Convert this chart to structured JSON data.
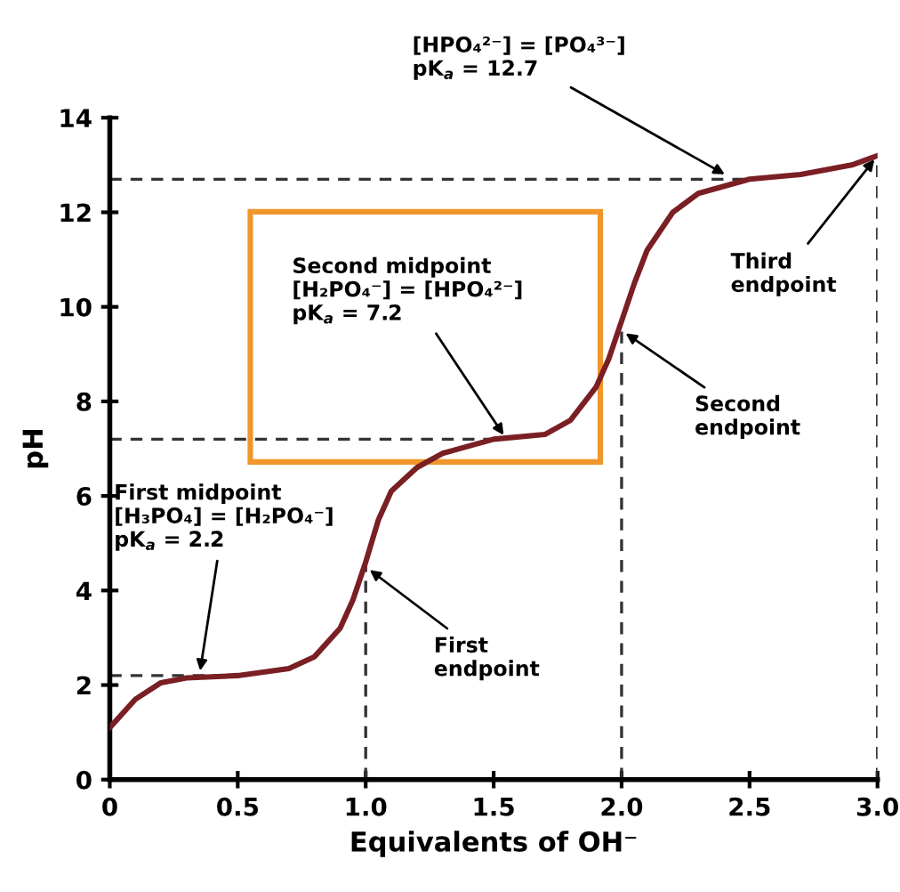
{
  "chart_data": {
    "type": "line",
    "xlabel": "Equivalents of OH⁻",
    "ylabel": "pH",
    "xlim": [
      0,
      3.0
    ],
    "ylim": [
      0,
      14
    ],
    "xticks": [
      0,
      0.5,
      {
        "value": 1.0,
        "label": "1.0"
      },
      1.5,
      {
        "value": 2.0,
        "label": "2.0"
      },
      2.5,
      {
        "value": 3.0,
        "label": "3.0"
      }
    ],
    "yticks": [
      0,
      2,
      4,
      6,
      8,
      10,
      12,
      14
    ],
    "grid": false,
    "marker": "none",
    "line_style": "solid",
    "x": [
      0,
      0.1,
      0.2,
      0.3,
      0.5,
      0.7,
      0.8,
      0.9,
      0.95,
      1.0,
      1.05,
      1.1,
      1.2,
      1.3,
      1.5,
      1.7,
      1.8,
      1.9,
      1.95,
      2.0,
      2.05,
      2.1,
      2.2,
      2.3,
      2.5,
      2.7,
      2.9,
      3.0
    ],
    "series": [
      {
        "color": "#7a1f24",
        "values": [
          1.1,
          1.7,
          2.05,
          2.15,
          2.2,
          2.35,
          2.6,
          3.2,
          3.8,
          4.6,
          5.5,
          6.1,
          6.6,
          6.9,
          7.2,
          7.3,
          7.6,
          8.3,
          8.9,
          9.7,
          10.5,
          11.2,
          12.0,
          12.4,
          12.7,
          12.8,
          13.0,
          13.2
        ]
      }
    ],
    "ref_lines": [
      {
        "axis": "y",
        "value": 2.2,
        "line_style": "dashed",
        "color": "#333333"
      },
      {
        "axis": "y",
        "value": 7.2,
        "line_style": "dashed",
        "color": "#333333"
      },
      {
        "axis": "y",
        "value": 12.7,
        "line_style": "dashed",
        "color": "#333333"
      },
      {
        "axis": "x",
        "value": 1.0,
        "line_style": "dashed",
        "color": "#333333"
      },
      {
        "axis": "x",
        "value": 2.0,
        "line_style": "dashed",
        "color": "#333333"
      },
      {
        "axis": "x",
        "value": 3.0,
        "line_style": "dashed",
        "color": "#333333"
      }
    ],
    "annotations": [
      {
        "text": "[HPO₄²⁻] = [PO₄³⁻]\npK$_{a}$ = 12.7",
        "x": 2.42,
        "y": 12.75
      },
      {
        "text": "Third\nendpoint",
        "x": 3.0,
        "y": 13.2
      },
      {
        "text": "Second\nendpoint",
        "x": 2.0,
        "y": 9.5
      },
      {
        "text": "First\nendpoint",
        "x": 1.0,
        "y": 4.5
      },
      {
        "text": "Second midpoint\n[H₂PO₄⁻] = [HPO₄²⁻]\npK$_{a}$ = 7.2",
        "x": 1.55,
        "y": 7.2
      },
      {
        "text": "First midpoint\n[H₃PO₄] = [H₂PO₄⁻]\npK$_{a}$ = 2.2",
        "x": 0.35,
        "y": 2.2
      }
    ]
  }
}
